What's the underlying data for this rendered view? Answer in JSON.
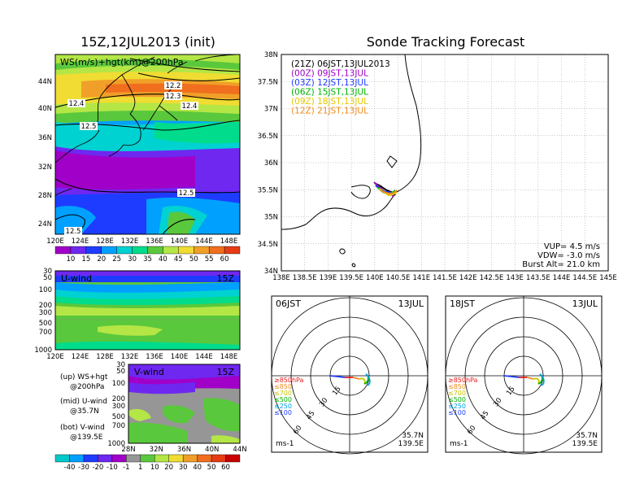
{
  "left_title": "15Z,12JUL2013 (init)",
  "right_title": "Sonde Tracking Forecast",
  "map_panel": {
    "label": "WS(m/s)+hgt(km)@200hPa",
    "contour_labels": [
      "12.2",
      "12.3",
      "12.4",
      "12.4",
      "12.5",
      "12.5",
      "12.5"
    ],
    "lon_ticks": [
      "120E",
      "124E",
      "128E",
      "132E",
      "136E",
      "140E",
      "144E",
      "148E"
    ],
    "lat_ticks": [
      "44N",
      "40N",
      "36N",
      "32N",
      "28N",
      "24N"
    ],
    "colorbar_labels": [
      "10",
      "15",
      "20",
      "25",
      "30",
      "35",
      "40",
      "45",
      "50",
      "55",
      "60"
    ],
    "colorbar_colors": [
      "#a000c8",
      "#6e28f0",
      "#1e3cff",
      "#00a0ff",
      "#00d2d2",
      "#00dc8c",
      "#5ac83c",
      "#b4e646",
      "#f0dc32",
      "#f0a028",
      "#f06e1e",
      "#e63c14"
    ]
  },
  "u_panel": {
    "label": "U-wind",
    "time": "15Z",
    "p_ticks": [
      "30",
      "50",
      "100",
      "200",
      "300",
      "500",
      "700",
      "1000"
    ],
    "lon_ticks": [
      "120E",
      "124E",
      "128E",
      "132E",
      "136E",
      "140E",
      "144E",
      "148E"
    ]
  },
  "v_panel": {
    "label": "V-wind",
    "time": "15Z",
    "p_ticks": [
      "30",
      "50",
      "100",
      "200",
      "300",
      "500",
      "700",
      "1000"
    ],
    "lat_ticks": [
      "28N",
      "32N",
      "36N",
      "40N",
      "44N"
    ],
    "colorbar_labels": [
      "-40",
      "-30",
      "-20",
      "-10",
      "-1",
      "1",
      "10",
      "20",
      "30",
      "40",
      "50",
      "60"
    ],
    "colorbar_colors": [
      "#00c8c8",
      "#00a0ff",
      "#1e3cff",
      "#6e28f0",
      "#a000c8",
      "#969696",
      "#5ac83c",
      "#b4e646",
      "#f0dc32",
      "#f0a028",
      "#f06e1e",
      "#e63c14",
      "#c80000"
    ]
  },
  "side_notes": [
    [
      "(up) WS+hgt",
      "@200hPa"
    ],
    [
      "(mid) U-wind",
      "@35.7N"
    ],
    [
      "(bot) V-wind",
      "@139.5E"
    ]
  ],
  "tracking_map": {
    "legend": [
      {
        "text": "(21Z) 06JST,13JUL2013",
        "color": "#000000"
      },
      {
        "text": "(00Z) 09JST,13JUL",
        "color": "#a000c8"
      },
      {
        "text": "(03Z) 12JST,13JUL",
        "color": "#1e3cff"
      },
      {
        "text": "(06Z) 15JST,13JUL",
        "color": "#00b400"
      },
      {
        "text": "(09Z) 18JST,13JUL",
        "color": "#e6c800"
      },
      {
        "text": "(12Z) 21JST,13JUL",
        "color": "#f08c1e"
      }
    ],
    "lat_ticks": [
      "38N",
      "37.5N",
      "37N",
      "36.5N",
      "36N",
      "35.5N",
      "35N",
      "34.5N",
      "34N"
    ],
    "lon_ticks": [
      "138E",
      "138.5E",
      "139E",
      "139.5E",
      "140E",
      "140.5E",
      "141E",
      "141.5E",
      "142E",
      "142.5E",
      "143E",
      "143.5E",
      "144E",
      "144.5E",
      "145E"
    ],
    "params": [
      "VUP= 4.5 m/s",
      "VDW= -3.0 m/s",
      "Burst Alt= 21.0 km"
    ]
  },
  "polar_left": {
    "time": "06JST",
    "date": "13JUL",
    "rings": [
      "15",
      "30",
      "45",
      "60"
    ],
    "levels": [
      {
        "text": "≥850hPa",
        "color": "#e61e1e"
      },
      {
        "text": "≤850",
        "color": "#f08c1e"
      },
      {
        "text": "≤700",
        "color": "#c8c800"
      },
      {
        "text": "≤500",
        "color": "#00b400"
      },
      {
        "text": "≤250",
        "color": "#00a0e6"
      },
      {
        "text": "≤100",
        "color": "#1e3cff"
      }
    ],
    "lat": "35.7N",
    "lon": "139.5E",
    "unit": "ms-1"
  },
  "polar_right": {
    "time": "18JST",
    "date": "13JUL",
    "rings": [
      "15",
      "30",
      "45",
      "60"
    ],
    "levels": [
      {
        "text": "≥850hPa",
        "color": "#e61e1e"
      },
      {
        "text": "≤850",
        "color": "#f08c1e"
      },
      {
        "text": "≤700",
        "color": "#c8c800"
      },
      {
        "text": "≤500",
        "color": "#00b400"
      },
      {
        "text": "≤250",
        "color": "#00a0e6"
      },
      {
        "text": "≤100",
        "color": "#1e3cff"
      }
    ],
    "lat": "35.7N",
    "lon": "139.5E",
    "unit": "ms-1"
  },
  "chart_data": [
    {
      "type": "heatmap",
      "title": "WS(m/s)+hgt(km)@200hPa",
      "x_range": [
        "120E",
        "149E"
      ],
      "y_range": [
        "22N",
        "47N"
      ],
      "contours_km": [
        12.2,
        12.3,
        12.4,
        12.5
      ]
    },
    {
      "type": "heatmap",
      "title": "U-wind",
      "y_levels_hPa": [
        30,
        50,
        100,
        200,
        300,
        500,
        700,
        1000
      ]
    },
    {
      "type": "heatmap",
      "title": "V-wind",
      "y_levels_hPa": [
        30,
        50,
        100,
        200,
        300,
        500,
        700,
        1000
      ]
    },
    {
      "type": "line",
      "title": "Sonde Tracking Forecast",
      "xlim": [
        138,
        145
      ],
      "ylim": [
        34,
        38
      ]
    }
  ]
}
